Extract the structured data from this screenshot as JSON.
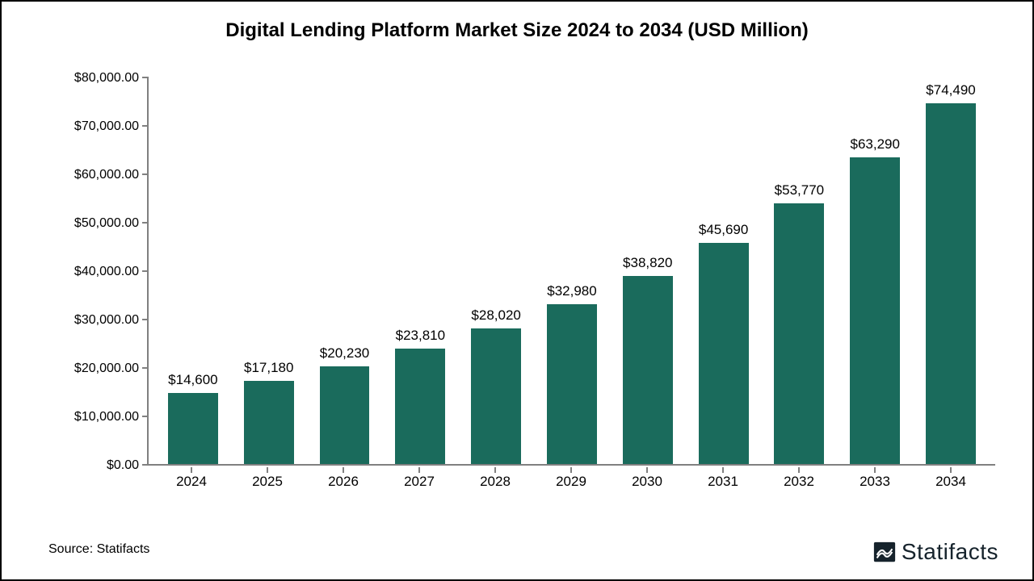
{
  "chart": {
    "type": "bar",
    "title": "Digital Lending Platform Market Size 2024 to 2034 (USD Million)",
    "title_fontsize": 24,
    "title_fontweight": "bold",
    "title_color": "#000000",
    "background_color": "#ffffff",
    "border_color": "#000000",
    "axis_color": "#808080",
    "bar_color": "#1a6b5c",
    "bar_width_ratio": 0.66,
    "label_fontsize": 17,
    "label_color": "#000000",
    "ylim": [
      0,
      80000
    ],
    "ytick_step": 10000,
    "ytick_labels": [
      "$0.00",
      "$10,000.00",
      "$20,000.00",
      "$30,000.00",
      "$40,000.00",
      "$50,000.00",
      "$60,000.00",
      "$70,000.00",
      "$80,000.00"
    ],
    "categories": [
      "2024",
      "2025",
      "2026",
      "2027",
      "2028",
      "2029",
      "2030",
      "2031",
      "2032",
      "2033",
      "2034"
    ],
    "values": [
      14600,
      17180,
      20230,
      23810,
      28020,
      32980,
      38820,
      45690,
      53770,
      63290,
      74490
    ],
    "value_labels": [
      "$14,600",
      "$17,180",
      "$20,230",
      "$23,810",
      "$28,020",
      "$32,980",
      "$38,820",
      "$45,690",
      "$53,770",
      "$63,290",
      "$74,490"
    ]
  },
  "footer": {
    "source_text": "Source: Statifacts",
    "logo_text": "Statifacts",
    "logo_color": "#16232c"
  }
}
